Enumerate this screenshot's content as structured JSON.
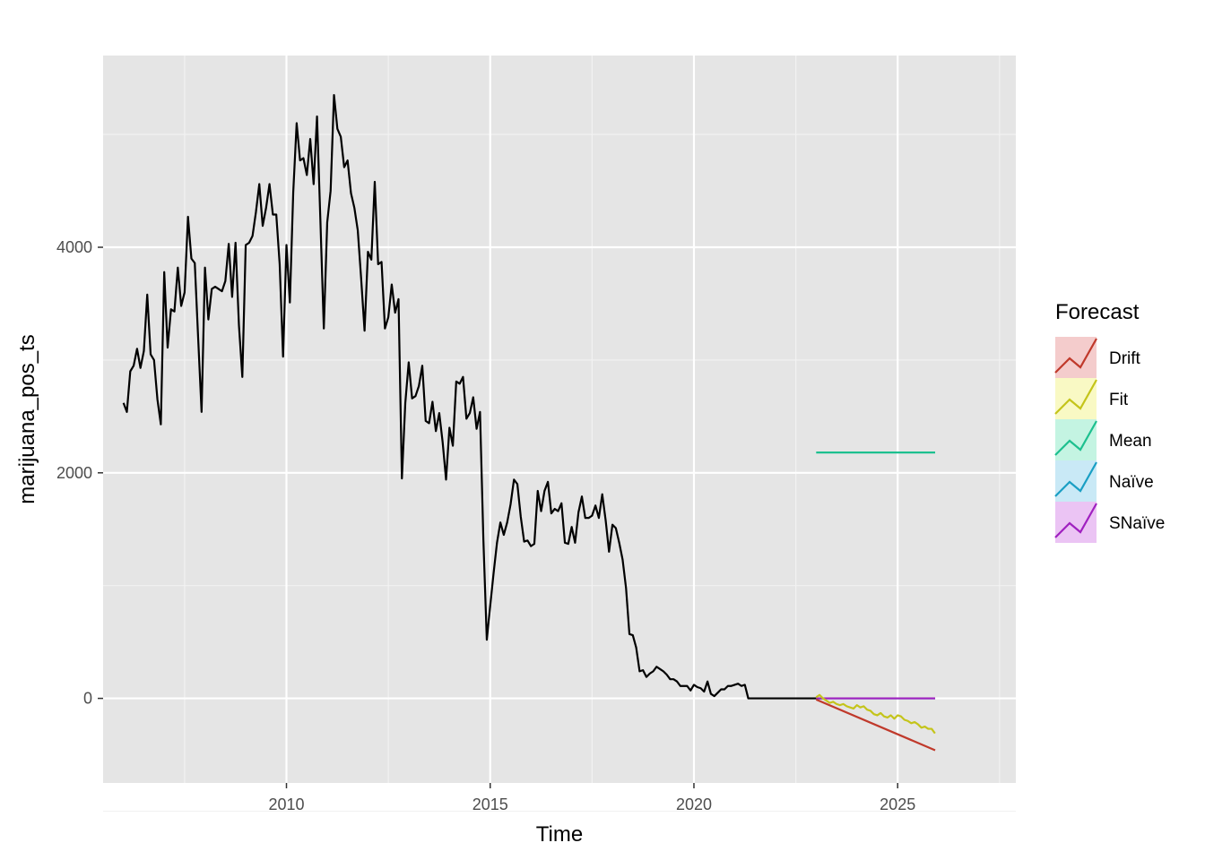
{
  "chart_data": {
    "type": "line",
    "xlabel": "Time",
    "ylabel": "marijuana_pos_ts",
    "xlim": [
      2005.5,
      2027.9
    ],
    "ylim": [
      -750,
      5700
    ],
    "x_ticks": [
      2010,
      2015,
      2020,
      2025
    ],
    "x_tick_labels": [
      "2010",
      "2015",
      "2020",
      "2025"
    ],
    "y_ticks": [
      0,
      2000,
      4000
    ],
    "y_tick_labels": [
      "0",
      "2000",
      "4000"
    ],
    "grid": true,
    "legend": {
      "title": "Forecast",
      "placement": "right",
      "entries": [
        {
          "name": "Drift",
          "color": "#C0392B",
          "fill": "#F4CCCC"
        },
        {
          "name": "Fit",
          "color": "#C4C41A",
          "fill": "#F9F9C4"
        },
        {
          "name": "Mean",
          "color": "#1DC08F",
          "fill": "#C4F4E2"
        },
        {
          "name": "Naïve",
          "color": "#1A9FC4",
          "fill": "#C9E9F6"
        },
        {
          "name": "SNaïve",
          "color": "#A020C0",
          "fill": "#EBC4F4"
        }
      ]
    },
    "history": {
      "start": 2006.0,
      "step": 0.0833333,
      "color": "#000000",
      "values": [
        2620,
        2540,
        2900,
        2950,
        3100,
        2930,
        3080,
        3580,
        3050,
        3000,
        2650,
        2430,
        3780,
        3110,
        3450,
        3430,
        3820,
        3480,
        3600,
        4270,
        3900,
        3860,
        3190,
        2540,
        3820,
        3360,
        3630,
        3650,
        3630,
        3610,
        3700,
        4030,
        3560,
        4040,
        3310,
        2850,
        4020,
        4040,
        4100,
        4310,
        4560,
        4190,
        4350,
        4560,
        4290,
        4290,
        3850,
        3030,
        4020,
        3510,
        4490,
        5100,
        4770,
        4790,
        4640,
        4960,
        4560,
        5160,
        4230,
        3280,
        4220,
        4500,
        5350,
        5050,
        4980,
        4710,
        4770,
        4480,
        4350,
        4150,
        3720,
        3260,
        3960,
        3890,
        4580,
        3850,
        3870,
        3280,
        3380,
        3670,
        3420,
        3540,
        1950,
        2620,
        2980,
        2660,
        2680,
        2770,
        2950,
        2460,
        2440,
        2630,
        2370,
        2530,
        2270,
        1940,
        2400,
        2240,
        2810,
        2790,
        2850,
        2480,
        2530,
        2670,
        2390,
        2540,
        1400,
        520,
        820,
        1110,
        1380,
        1560,
        1450,
        1560,
        1720,
        1940,
        1900,
        1610,
        1390,
        1400,
        1350,
        1370,
        1840,
        1660,
        1840,
        1920,
        1640,
        1680,
        1660,
        1730,
        1380,
        1370,
        1520,
        1380,
        1650,
        1790,
        1600,
        1600,
        1620,
        1710,
        1600,
        1810,
        1580,
        1300,
        1540,
        1510,
        1380,
        1230,
        980,
        570,
        560,
        450,
        240,
        250,
        190,
        220,
        240,
        280,
        260,
        240,
        210,
        170,
        170,
        150,
        110,
        110,
        110,
        70,
        120,
        100,
        90,
        60,
        150,
        40,
        20,
        50,
        80,
        80,
        110,
        110,
        120,
        130,
        110,
        120,
        0,
        0,
        0,
        0,
        0,
        0,
        0,
        0,
        0,
        0,
        0,
        0,
        0,
        0,
        0,
        0,
        0,
        0,
        0,
        0,
        0,
        0,
        0,
        0
      ]
    },
    "series": [
      {
        "name": "Mean",
        "color": "#1DC08F",
        "x": [
          2023.0,
          2025.92
        ],
        "y": [
          2180,
          2180
        ]
      },
      {
        "name": "Naïve",
        "color": "#1A9FC4",
        "x": [
          2023.0,
          2025.92
        ],
        "y": [
          0,
          0
        ]
      },
      {
        "name": "SNaïve",
        "color": "#A020C0",
        "x": [
          2023.0,
          2025.92
        ],
        "y": [
          0,
          0
        ]
      },
      {
        "name": "Drift",
        "color": "#C0392B",
        "x": [
          2023.0,
          2025.92
        ],
        "y": [
          -10,
          -460
        ]
      },
      {
        "name": "Fit",
        "color": "#C4C41A",
        "start": 2023.0,
        "step": 0.0833333,
        "values": [
          10,
          30,
          0,
          -20,
          -40,
          -30,
          -50,
          -60,
          -50,
          -70,
          -80,
          -90,
          -60,
          -80,
          -70,
          -100,
          -110,
          -140,
          -150,
          -130,
          -160,
          -170,
          -150,
          -180,
          -150,
          -160,
          -190,
          -200,
          -220,
          -210,
          -230,
          -260,
          -250,
          -270,
          -270,
          -310
        ]
      }
    ]
  }
}
